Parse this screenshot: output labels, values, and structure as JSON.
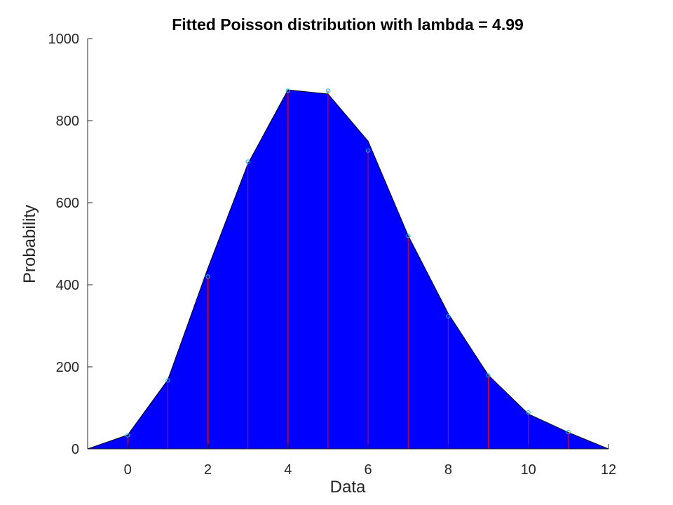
{
  "chart_data": {
    "type": "area",
    "title": "Fitted Poisson distribution with lambda = 4.99",
    "xlabel": "Data",
    "ylabel": "Probability",
    "xlim": [
      -1,
      12
    ],
    "ylim": [
      0,
      1000
    ],
    "xticks": [
      0,
      2,
      4,
      6,
      8,
      10,
      12
    ],
    "yticks": [
      0,
      200,
      400,
      600,
      800,
      1000
    ],
    "grid": false,
    "area": {
      "x": [
        -1,
        0,
        1,
        2,
        3,
        4,
        5,
        6,
        7,
        8,
        9,
        10,
        11,
        12
      ],
      "y": [
        0,
        34,
        168,
        440,
        695,
        875,
        865,
        750,
        520,
        330,
        180,
        85,
        40,
        0
      ],
      "color": "#0000ff"
    },
    "stems": {
      "x": [
        0,
        1,
        2,
        3,
        4,
        5,
        6,
        7,
        8,
        9,
        10,
        11
      ],
      "y": [
        33,
        167,
        420,
        700,
        873,
        873,
        727,
        519,
        323,
        179,
        89,
        41
      ],
      "stem_color": "#ff0000",
      "marker_color": "#00bfff"
    }
  }
}
